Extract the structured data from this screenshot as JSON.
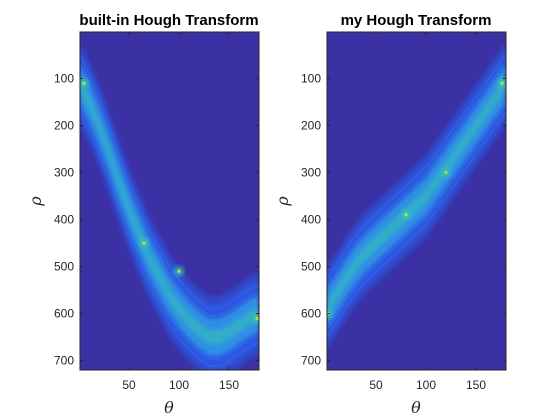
{
  "figure": {
    "colors": {
      "background": "#3b31a5",
      "low": "#2c5ae6",
      "mid": "#2fa6e6",
      "high": "#33c9b0",
      "peak": "#c9d640",
      "axis": "#262626"
    }
  },
  "chart_data": [
    {
      "type": "heatmap",
      "title": "built-in Hough Transform",
      "xlabel": "θ",
      "ylabel": "ρ",
      "xlim": [
        1,
        180
      ],
      "ylim": [
        720,
        1
      ],
      "xticks": [
        50,
        100,
        150
      ],
      "yticks": [
        100,
        200,
        300,
        400,
        500,
        600,
        700
      ],
      "x_tick_labels": [
        "50",
        "100",
        "150"
      ],
      "y_tick_labels": [
        "100",
        "200",
        "300",
        "400",
        "500",
        "600",
        "700"
      ],
      "y_reversed": true,
      "band_center": {
        "theta": [
          0,
          10,
          20,
          30,
          40,
          50,
          60,
          70,
          80,
          90,
          100,
          110,
          120,
          130,
          140,
          150,
          160,
          170,
          180
        ],
        "rho": [
          110,
          150,
          200,
          258,
          320,
          378,
          430,
          480,
          520,
          560,
          590,
          615,
          635,
          650,
          650,
          640,
          625,
          610,
          600
        ]
      },
      "band_halfwidth_rho": 70,
      "hotspots": [
        {
          "theta": 5,
          "rho": 110
        },
        {
          "theta": 65,
          "rho": 450
        },
        {
          "theta": 100,
          "rho": 510
        },
        {
          "theta": 178,
          "rho": 610
        }
      ]
    },
    {
      "type": "heatmap",
      "title": "my Hough Transform",
      "xlabel": "θ",
      "ylabel": "ρ",
      "xlim": [
        1,
        180
      ],
      "ylim": [
        720,
        1
      ],
      "xticks": [
        50,
        100,
        150
      ],
      "yticks": [
        100,
        200,
        300,
        400,
        500,
        600,
        700
      ],
      "x_tick_labels": [
        "50",
        "100",
        "150"
      ],
      "y_tick_labels": [
        "100",
        "200",
        "300",
        "400",
        "500",
        "600",
        "700"
      ],
      "y_reversed": true,
      "band_center": {
        "theta": [
          0,
          10,
          20,
          30,
          40,
          50,
          60,
          70,
          80,
          90,
          100,
          110,
          120,
          130,
          140,
          150,
          160,
          170,
          180
        ],
        "rho": [
          590,
          560,
          525,
          495,
          470,
          450,
          430,
          410,
          390,
          370,
          350,
          320,
          290,
          260,
          230,
          200,
          170,
          140,
          110
        ]
      },
      "band_halfwidth_rho": 70,
      "hotspots": [
        {
          "theta": 2,
          "rho": 600
        },
        {
          "theta": 80,
          "rho": 390
        },
        {
          "theta": 120,
          "rho": 300
        },
        {
          "theta": 176,
          "rho": 110
        }
      ]
    }
  ]
}
